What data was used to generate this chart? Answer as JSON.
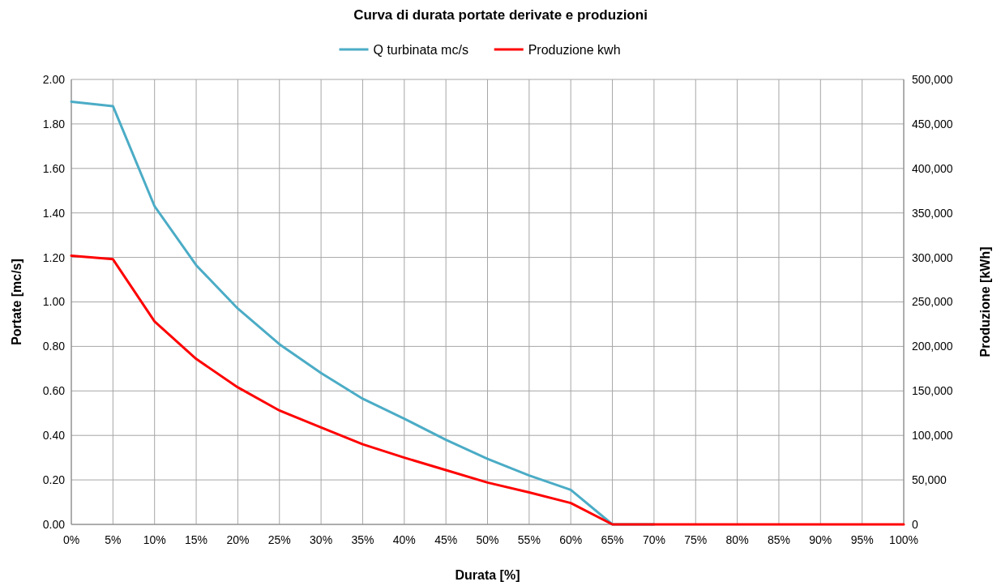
{
  "chart_data": {
    "type": "line",
    "title": "Curva di durata portate derivate e produzioni",
    "xlabel": "Durata [%]",
    "ylabel": "Portate [mc/s]",
    "y2label": "Produzione [kWh]",
    "categories": [
      "0%",
      "5%",
      "10%",
      "15%",
      "20%",
      "25%",
      "30%",
      "35%",
      "40%",
      "45%",
      "50%",
      "55%",
      "60%",
      "65%",
      "70%",
      "75%",
      "80%",
      "85%",
      "90%",
      "95%",
      "100%"
    ],
    "series": [
      {
        "name": "Q turbinata mc/s",
        "color": "#4bacc6",
        "values": [
          1.9,
          1.88,
          1.43,
          1.165,
          0.97,
          0.81,
          0.68,
          0.565,
          0.475,
          0.38,
          0.295,
          0.22,
          0.155,
          0,
          0,
          null,
          null,
          null,
          null,
          null,
          null
        ]
      },
      {
        "name": "Produzione kwh",
        "color": "#ff0000",
        "axis": "y2",
        "values": [
          302000,
          298000,
          228000,
          186000,
          154000,
          128000,
          109000,
          90000,
          75000,
          61000,
          47000,
          36000,
          24000,
          0,
          0,
          0,
          0,
          0,
          0,
          0,
          0
        ]
      }
    ],
    "ylim": [
      0,
      2
    ],
    "yticks": [
      {
        "value": 0,
        "label": "0.00"
      },
      {
        "value": 0.2,
        "label": "0.20"
      },
      {
        "value": 0.4,
        "label": "0.40"
      },
      {
        "value": 0.6,
        "label": "0.60"
      },
      {
        "value": 0.8,
        "label": "0.80"
      },
      {
        "value": 1,
        "label": "1.00"
      },
      {
        "value": 1.2,
        "label": "1.20"
      },
      {
        "value": 1.4,
        "label": "1.40"
      },
      {
        "value": 1.6,
        "label": "1.60"
      },
      {
        "value": 1.8,
        "label": "1.80"
      },
      {
        "value": 2,
        "label": "2.00"
      }
    ],
    "y2lim": [
      0,
      500000
    ],
    "y2ticks": [
      0,
      {
        "value": 50000,
        "label": "50,000"
      },
      {
        "value": 100000,
        "label": "100,000"
      },
      {
        "value": 150000,
        "label": "150,000"
      },
      {
        "value": 200000,
        "label": "200,000"
      },
      {
        "value": 250000,
        "label": "250,000"
      },
      {
        "value": 300000,
        "label": "300,000"
      },
      {
        "value": 350000,
        "label": "350,000"
      },
      {
        "value": 400000,
        "label": "400,000"
      },
      {
        "value": 450000,
        "label": "450,000"
      },
      {
        "value": 500000,
        "label": "500,000"
      }
    ],
    "grid": true,
    "legend": "top",
    "marker": "none",
    "line_style": "solid"
  }
}
